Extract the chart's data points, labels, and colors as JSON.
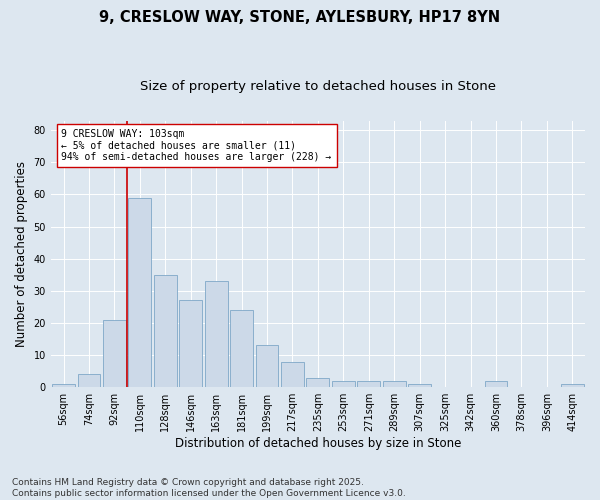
{
  "title1": "9, CRESLOW WAY, STONE, AYLESBURY, HP17 8YN",
  "title2": "Size of property relative to detached houses in Stone",
  "xlabel": "Distribution of detached houses by size in Stone",
  "ylabel": "Number of detached properties",
  "bins": [
    "56sqm",
    "74sqm",
    "92sqm",
    "110sqm",
    "128sqm",
    "146sqm",
    "163sqm",
    "181sqm",
    "199sqm",
    "217sqm",
    "235sqm",
    "253sqm",
    "271sqm",
    "289sqm",
    "307sqm",
    "325sqm",
    "342sqm",
    "360sqm",
    "378sqm",
    "396sqm",
    "414sqm"
  ],
  "values": [
    1,
    4,
    21,
    59,
    35,
    27,
    33,
    24,
    13,
    8,
    3,
    2,
    2,
    2,
    1,
    0,
    0,
    2,
    0,
    0,
    1
  ],
  "bar_color": "#ccd9e8",
  "bar_edge_color": "#7fa8c8",
  "vline_color": "#cc0000",
  "annotation_text": "9 CRESLOW WAY: 103sqm\n← 5% of detached houses are smaller (11)\n94% of semi-detached houses are larger (228) →",
  "annotation_box_color": "#ffffff",
  "annotation_box_edge": "#cc0000",
  "ylim": [
    0,
    83
  ],
  "yticks": [
    0,
    10,
    20,
    30,
    40,
    50,
    60,
    70,
    80
  ],
  "background_color": "#dde7f0",
  "grid_color": "#ffffff",
  "footer": "Contains HM Land Registry data © Crown copyright and database right 2025.\nContains public sector information licensed under the Open Government Licence v3.0.",
  "title1_fontsize": 10.5,
  "title2_fontsize": 9.5,
  "axis_label_fontsize": 8.5,
  "tick_fontsize": 7,
  "annotation_fontsize": 7,
  "footer_fontsize": 6.5
}
